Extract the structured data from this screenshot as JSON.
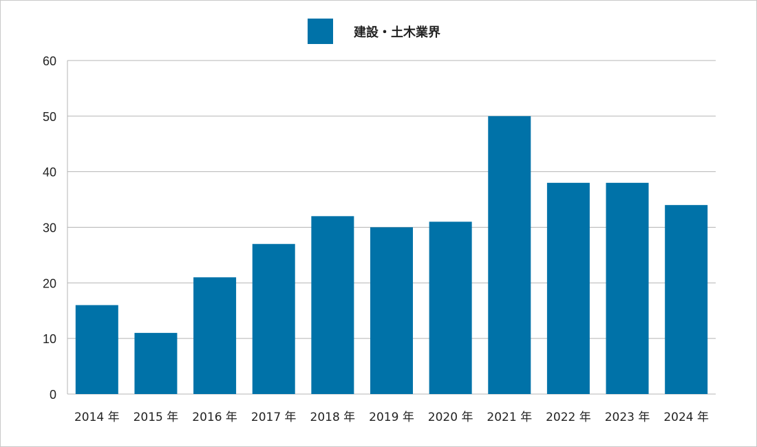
{
  "chart_data": {
    "type": "bar",
    "categories": [
      "2014 年",
      "2015 年",
      "2016 年",
      "2017 年",
      "2018 年",
      "2019 年",
      "2020 年",
      "2021 年",
      "2022 年",
      "2023 年",
      "2024 年"
    ],
    "series": [
      {
        "name": "建設・土木業界",
        "values": [
          16,
          11,
          21,
          27,
          32,
          30,
          31,
          50,
          38,
          38,
          34
        ]
      }
    ],
    "ylim": [
      0,
      60
    ],
    "yticks": [
      0,
      10,
      20,
      30,
      40,
      50,
      60
    ],
    "grid": true,
    "legend_position": "top-center",
    "color": "#0072a8"
  }
}
